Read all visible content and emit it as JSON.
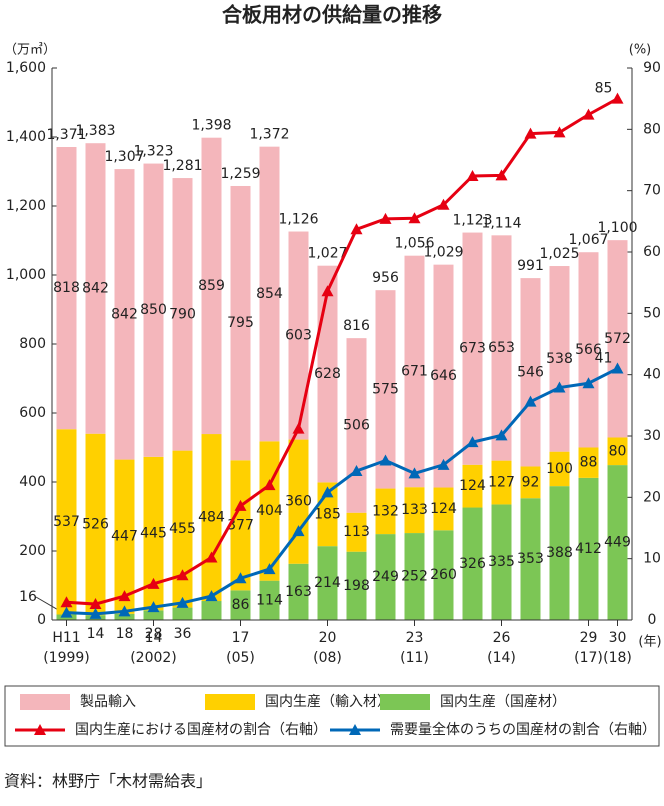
{
  "chart_data": {
    "type": "bar",
    "title": "合板用材の供給量の推移",
    "y_unit": "（万㎥）",
    "y2_unit": "(%)",
    "x_unit": "(年)",
    "source": "資料：林野庁「木材需給表」",
    "categories": [
      "H11",
      null,
      null,
      "14",
      null,
      null,
      "17",
      null,
      null,
      "20",
      null,
      null,
      "23",
      null,
      null,
      "26",
      null,
      null,
      "29",
      "30"
    ],
    "x_sublabels": [
      "(1999)",
      null,
      null,
      "(2002)",
      null,
      null,
      "(05)",
      null,
      null,
      "(08)",
      null,
      null,
      "(11)",
      null,
      null,
      "(14)",
      null,
      null,
      "(17)",
      "(18)"
    ],
    "ylim": [
      0,
      1600
    ],
    "yticks": [
      0,
      200,
      400,
      600,
      800,
      {
        "value": 1000,
        "label": "1,000"
      },
      {
        "value": 1200,
        "label": "1,200"
      },
      {
        "value": 1400,
        "label": "1,400"
      },
      {
        "value": 1600,
        "label": "1,600"
      }
    ],
    "y2lim": [
      0,
      90
    ],
    "y2ticks": [
      0,
      10,
      20,
      30,
      40,
      50,
      60,
      70,
      80,
      90
    ],
    "series": [
      {
        "name": "国内生産（国産材）",
        "type": "bar",
        "color": "#7cc655",
        "values": [
          16,
          14,
          18,
          28,
          36,
          55,
          86,
          114,
          163,
          214,
          198,
          249,
          252,
          260,
          326,
          335,
          353,
          388,
          412,
          449
        ]
      },
      {
        "name": "国内生産（輸入材）",
        "type": "bar",
        "color": "#ffd000",
        "values": [
          537,
          526,
          447,
          445,
          455,
          484,
          377,
          404,
          360,
          185,
          113,
          132,
          133,
          124,
          124,
          127,
          92,
          100,
          88,
          80
        ]
      },
      {
        "name": "製品輸入",
        "type": "bar",
        "color": "#f4b6bb",
        "values": [
          818,
          842,
          842,
          850,
          790,
          859,
          795,
          854,
          603,
          628,
          506,
          575,
          671,
          646,
          673,
          653,
          546,
          538,
          566,
          572
        ]
      },
      {
        "name": "国内生産における国産材の割合（右軸）",
        "type": "line",
        "axis": "y2",
        "color": "#e60012",
        "values": [
          2.9,
          2.6,
          3.9,
          5.9,
          7.3,
          10.2,
          18.6,
          22,
          31.2,
          53.6,
          63.7,
          65.4,
          65.5,
          67.7,
          72.4,
          72.5,
          79.3,
          79.5,
          82.4,
          85
        ]
      },
      {
        "name": "需要量全体のうちの国産材の割合（右軸）",
        "type": "line",
        "axis": "y2",
        "color": "#0068b7",
        "values": [
          1.2,
          1,
          1.4,
          2.1,
          2.8,
          3.9,
          6.8,
          8.3,
          14.5,
          20.8,
          24.3,
          26,
          23.9,
          25.3,
          29,
          30.1,
          35.6,
          37.9,
          38.6,
          41
        ]
      }
    ],
    "totals": [
      {
        "value": 1371,
        "label": "1,371"
      },
      {
        "value": 1383,
        "label": "1,383"
      },
      {
        "value": 1307,
        "label": "1,307"
      },
      {
        "value": 1323,
        "label": "1,323"
      },
      {
        "value": 1281,
        "label": "1,281"
      },
      {
        "value": 1398,
        "label": "1,398"
      },
      {
        "value": 1259,
        "label": "1,259"
      },
      {
        "value": 1372,
        "label": "1,372"
      },
      {
        "value": 1126,
        "label": "1,126"
      },
      {
        "value": 1027,
        "label": "1,027"
      },
      816,
      956,
      {
        "value": 1056,
        "label": "1,056"
      },
      {
        "value": 1029,
        "label": "1,029"
      },
      {
        "value": 1123,
        "label": "1,123"
      },
      {
        "value": 1114,
        "label": "1,114"
      },
      991,
      {
        "value": 1025,
        "label": "1,025"
      },
      {
        "value": 1067,
        "label": "1,067"
      },
      {
        "value": 1100,
        "label": "1,100"
      }
    ]
  }
}
